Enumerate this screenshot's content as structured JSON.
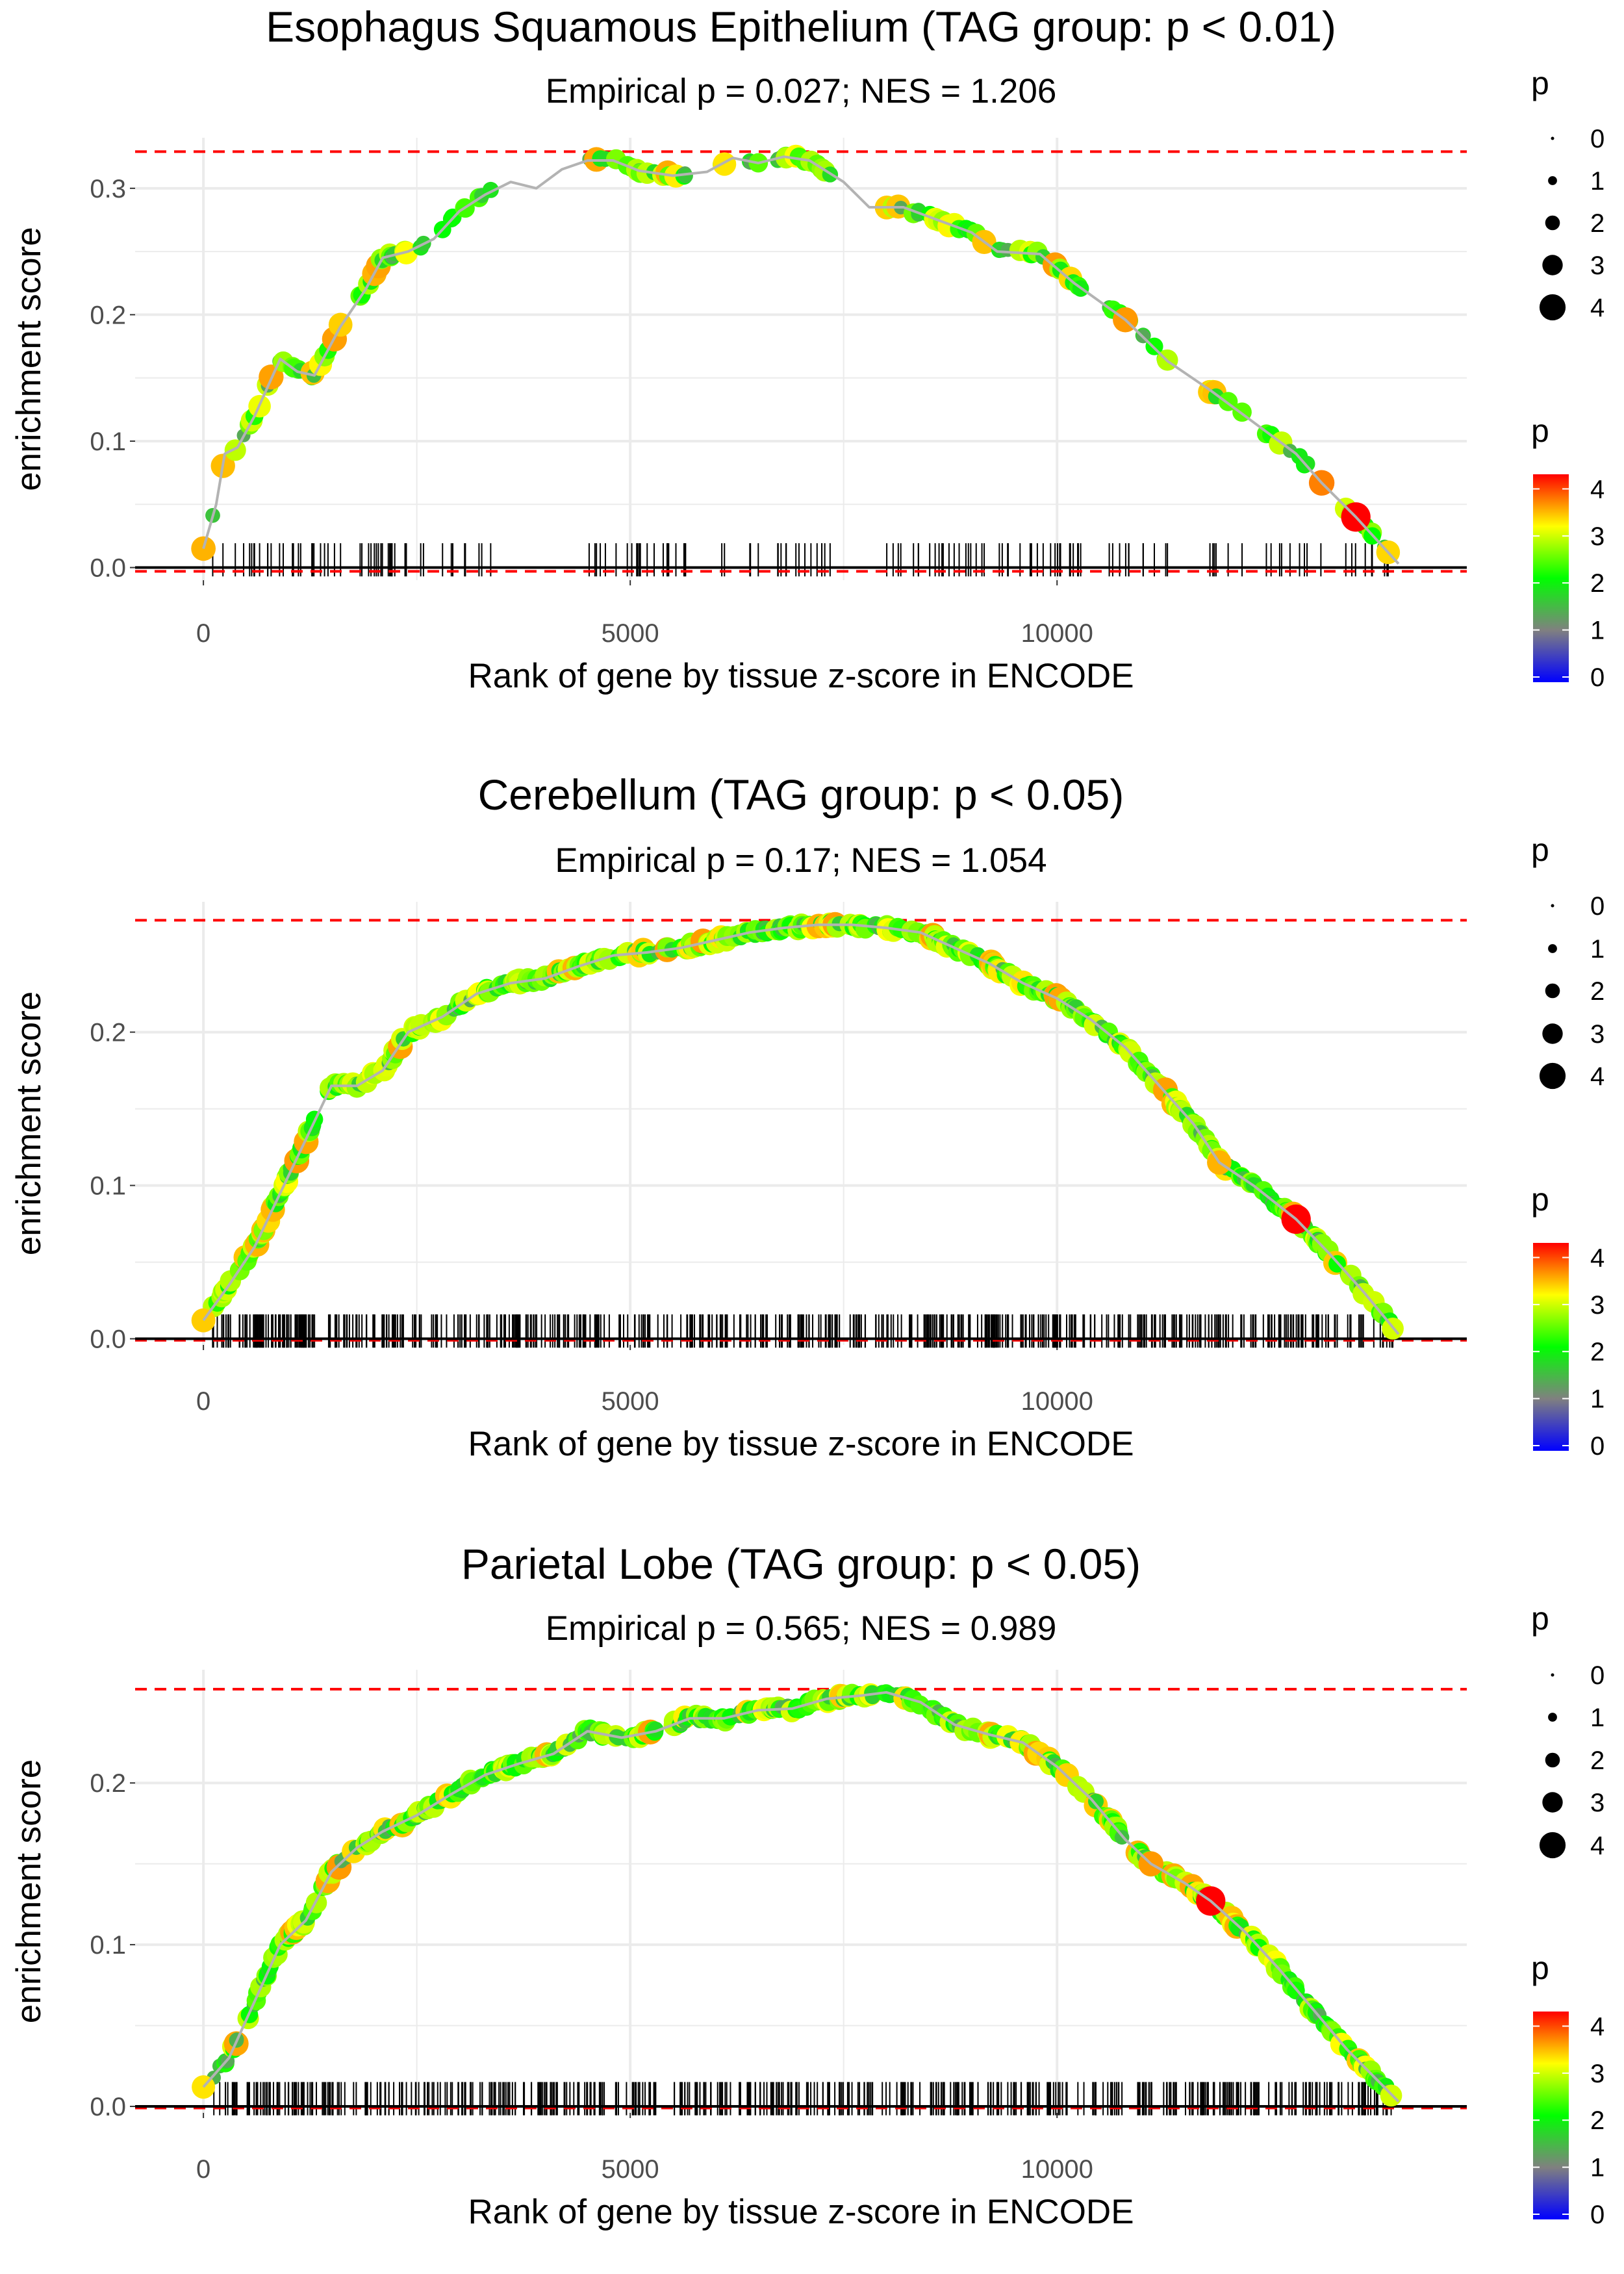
{
  "colors": {
    "threshold_line": "#ff0000",
    "curve_line": "#b3b3b3",
    "zero_line": "#000000",
    "rug": "#000000",
    "grid": "#ebebeb",
    "gradient": [
      "#0000ff",
      "#808080",
      "#00ff00",
      "#ffff00",
      "#ff0000"
    ]
  },
  "chart_data": [
    {
      "type": "scatter",
      "title": "Esophagus Squamous Epithelium (TAG group: p < 0.01)",
      "subtitle": "Empirical p = 0.027; NES = 1.206",
      "xlabel": "Rank of gene by tissue z-score in ENCODE",
      "ylabel": "enrichment score",
      "xlim": [
        -800,
        14800
      ],
      "ylim": [
        -0.01,
        0.34
      ],
      "xticks": [
        0,
        5000,
        10000
      ],
      "xtick_labels": [
        "0",
        "5000",
        "10000"
      ],
      "yticks": [
        0,
        0.1,
        0.2,
        0.3
      ],
      "ytick_labels": [
        "0.0",
        "0.1",
        "0.2",
        "0.3"
      ],
      "hlines": [
        0.329,
        -0.003
      ],
      "end_x": 14000,
      "n_hits": 170,
      "rug_gaps": [
        [
          3400,
          4400
        ],
        [
          5700,
          6050
        ],
        [
          7500,
          7950
        ],
        [
          10300,
          10600
        ]
      ],
      "seed": 11,
      "highlights": [
        {
          "x": 10800,
          "y": 0.196,
          "p": 3.4
        },
        {
          "x": 13100,
          "y": 0.067,
          "p": 3.5
        },
        {
          "x": 13500,
          "y": 0.04,
          "p": 4.2
        },
        {
          "x": 0,
          "y": 0.015,
          "p": 3.3
        }
      ],
      "curve": [
        {
          "x": 0,
          "y": 0.015
        },
        {
          "x": 150,
          "y": 0.05
        },
        {
          "x": 250,
          "y": 0.09
        },
        {
          "x": 400,
          "y": 0.095
        },
        {
          "x": 600,
          "y": 0.12
        },
        {
          "x": 900,
          "y": 0.165
        },
        {
          "x": 1100,
          "y": 0.155
        },
        {
          "x": 1300,
          "y": 0.152
        },
        {
          "x": 1600,
          "y": 0.19
        },
        {
          "x": 1900,
          "y": 0.22
        },
        {
          "x": 2100,
          "y": 0.245
        },
        {
          "x": 2400,
          "y": 0.25
        },
        {
          "x": 2700,
          "y": 0.26
        },
        {
          "x": 3000,
          "y": 0.282
        },
        {
          "x": 3300,
          "y": 0.295
        },
        {
          "x": 3600,
          "y": 0.305
        },
        {
          "x": 3900,
          "y": 0.3
        },
        {
          "x": 4200,
          "y": 0.315
        },
        {
          "x": 4500,
          "y": 0.322
        },
        {
          "x": 4800,
          "y": 0.322
        },
        {
          "x": 5100,
          "y": 0.314
        },
        {
          "x": 5500,
          "y": 0.31
        },
        {
          "x": 5900,
          "y": 0.313
        },
        {
          "x": 6200,
          "y": 0.324
        },
        {
          "x": 6500,
          "y": 0.32
        },
        {
          "x": 6800,
          "y": 0.325
        },
        {
          "x": 7100,
          "y": 0.322
        },
        {
          "x": 7500,
          "y": 0.305
        },
        {
          "x": 7800,
          "y": 0.285
        },
        {
          "x": 8200,
          "y": 0.285
        },
        {
          "x": 8600,
          "y": 0.275
        },
        {
          "x": 9000,
          "y": 0.265
        },
        {
          "x": 9300,
          "y": 0.25
        },
        {
          "x": 9800,
          "y": 0.248
        },
        {
          "x": 10200,
          "y": 0.225
        },
        {
          "x": 10800,
          "y": 0.196
        },
        {
          "x": 11300,
          "y": 0.163
        },
        {
          "x": 11800,
          "y": 0.14
        },
        {
          "x": 12300,
          "y": 0.115
        },
        {
          "x": 12800,
          "y": 0.09
        },
        {
          "x": 13100,
          "y": 0.067
        },
        {
          "x": 13500,
          "y": 0.04
        },
        {
          "x": 14000,
          "y": 0.003
        }
      ],
      "legend": {
        "size_title": "p",
        "size_labels": [
          "0",
          "1",
          "2",
          "3",
          "4"
        ],
        "color_title": "p",
        "color_labels": [
          "0",
          "1",
          "2",
          "3",
          "4"
        ]
      }
    },
    {
      "type": "scatter",
      "title": "Cerebellum (TAG group: p < 0.05)",
      "subtitle": "Empirical p = 0.17; NES = 1.054",
      "xlabel": "Rank of gene by tissue z-score in ENCODE",
      "ylabel": "enrichment score",
      "xlim": [
        -800,
        14800
      ],
      "ylim": [
        -0.004,
        0.285
      ],
      "xticks": [
        0,
        5000,
        10000
      ],
      "xtick_labels": [
        "0",
        "5000",
        "10000"
      ],
      "yticks": [
        0,
        0.1,
        0.2
      ],
      "ytick_labels": [
        "0.0",
        "0.1",
        "0.2"
      ],
      "hlines": [
        0.273,
        -0.001
      ],
      "end_x": 14000,
      "n_hits": 560,
      "rug_gaps": [],
      "seed": 23,
      "highlights": [
        {
          "x": 11900,
          "y": 0.115,
          "p": 3.3
        },
        {
          "x": 12800,
          "y": 0.078,
          "p": 4.2
        },
        {
          "x": 0,
          "y": 0.012,
          "p": 3.2
        }
      ],
      "curve": [
        {
          "x": 0,
          "y": 0.012
        },
        {
          "x": 300,
          "y": 0.035
        },
        {
          "x": 600,
          "y": 0.06
        },
        {
          "x": 900,
          "y": 0.095
        },
        {
          "x": 1200,
          "y": 0.13
        },
        {
          "x": 1500,
          "y": 0.165
        },
        {
          "x": 1800,
          "y": 0.165
        },
        {
          "x": 2100,
          "y": 0.175
        },
        {
          "x": 2400,
          "y": 0.2
        },
        {
          "x": 2800,
          "y": 0.21
        },
        {
          "x": 3200,
          "y": 0.225
        },
        {
          "x": 3600,
          "y": 0.232
        },
        {
          "x": 4000,
          "y": 0.235
        },
        {
          "x": 4400,
          "y": 0.243
        },
        {
          "x": 4800,
          "y": 0.25
        },
        {
          "x": 5200,
          "y": 0.252
        },
        {
          "x": 5600,
          "y": 0.255
        },
        {
          "x": 6000,
          "y": 0.26
        },
        {
          "x": 6400,
          "y": 0.265
        },
        {
          "x": 6800,
          "y": 0.268
        },
        {
          "x": 7200,
          "y": 0.27
        },
        {
          "x": 7600,
          "y": 0.27
        },
        {
          "x": 8000,
          "y": 0.268
        },
        {
          "x": 8400,
          "y": 0.265
        },
        {
          "x": 8800,
          "y": 0.255
        },
        {
          "x": 9200,
          "y": 0.245
        },
        {
          "x": 9600,
          "y": 0.232
        },
        {
          "x": 10000,
          "y": 0.222
        },
        {
          "x": 10400,
          "y": 0.208
        },
        {
          "x": 10800,
          "y": 0.19
        },
        {
          "x": 11200,
          "y": 0.165
        },
        {
          "x": 11600,
          "y": 0.14
        },
        {
          "x": 11900,
          "y": 0.115
        },
        {
          "x": 12300,
          "y": 0.1
        },
        {
          "x": 12800,
          "y": 0.078
        },
        {
          "x": 13200,
          "y": 0.055
        },
        {
          "x": 13600,
          "y": 0.03
        },
        {
          "x": 14000,
          "y": 0.003
        }
      ],
      "legend": {
        "size_title": "p",
        "size_labels": [
          "0",
          "1",
          "2",
          "3",
          "4"
        ],
        "color_title": "p",
        "color_labels": [
          "0",
          "1",
          "2",
          "3",
          "4"
        ]
      }
    },
    {
      "type": "scatter",
      "title": "Parietal Lobe (TAG group: p < 0.05)",
      "subtitle": "Empirical p = 0.565; NES = 0.989",
      "xlabel": "Rank of gene by tissue z-score in ENCODE",
      "ylabel": "enrichment score",
      "xlim": [
        -800,
        14800
      ],
      "ylim": [
        -0.004,
        0.27
      ],
      "xticks": [
        0,
        5000,
        10000
      ],
      "xtick_labels": [
        "0",
        "5000",
        "10000"
      ],
      "yticks": [
        0,
        0.1,
        0.2
      ],
      "ytick_labels": [
        "0.0",
        "0.1",
        "0.2"
      ],
      "hlines": [
        0.258,
        -0.001
      ],
      "end_x": 14000,
      "n_hits": 520,
      "rug_gaps": [],
      "seed": 37,
      "highlights": [
        {
          "x": 11100,
          "y": 0.15,
          "p": 3.4
        },
        {
          "x": 11800,
          "y": 0.127,
          "p": 4.2
        },
        {
          "x": 0,
          "y": 0.012,
          "p": 3.1
        }
      ],
      "curve": [
        {
          "x": 0,
          "y": 0.012
        },
        {
          "x": 300,
          "y": 0.03
        },
        {
          "x": 600,
          "y": 0.065
        },
        {
          "x": 900,
          "y": 0.1
        },
        {
          "x": 1200,
          "y": 0.115
        },
        {
          "x": 1500,
          "y": 0.145
        },
        {
          "x": 1800,
          "y": 0.16
        },
        {
          "x": 2100,
          "y": 0.17
        },
        {
          "x": 2500,
          "y": 0.18
        },
        {
          "x": 2900,
          "y": 0.193
        },
        {
          "x": 3300,
          "y": 0.205
        },
        {
          "x": 3700,
          "y": 0.212
        },
        {
          "x": 4100,
          "y": 0.218
        },
        {
          "x": 4500,
          "y": 0.232
        },
        {
          "x": 4900,
          "y": 0.228
        },
        {
          "x": 5300,
          "y": 0.232
        },
        {
          "x": 5700,
          "y": 0.24
        },
        {
          "x": 6100,
          "y": 0.24
        },
        {
          "x": 6500,
          "y": 0.245
        },
        {
          "x": 6900,
          "y": 0.246
        },
        {
          "x": 7300,
          "y": 0.252
        },
        {
          "x": 7700,
          "y": 0.254
        },
        {
          "x": 8000,
          "y": 0.256
        },
        {
          "x": 8400,
          "y": 0.25
        },
        {
          "x": 8800,
          "y": 0.236
        },
        {
          "x": 9200,
          "y": 0.23
        },
        {
          "x": 9600,
          "y": 0.225
        },
        {
          "x": 10000,
          "y": 0.21
        },
        {
          "x": 10400,
          "y": 0.19
        },
        {
          "x": 10800,
          "y": 0.165
        },
        {
          "x": 11100,
          "y": 0.15
        },
        {
          "x": 11500,
          "y": 0.138
        },
        {
          "x": 11800,
          "y": 0.127
        },
        {
          "x": 12200,
          "y": 0.108
        },
        {
          "x": 12600,
          "y": 0.085
        },
        {
          "x": 13000,
          "y": 0.06
        },
        {
          "x": 13400,
          "y": 0.035
        },
        {
          "x": 14000,
          "y": 0.003
        }
      ],
      "legend": {
        "size_title": "p",
        "size_labels": [
          "0",
          "1",
          "2",
          "3",
          "4"
        ],
        "color_title": "p",
        "color_labels": [
          "0",
          "1",
          "2",
          "3",
          "4"
        ]
      }
    }
  ]
}
